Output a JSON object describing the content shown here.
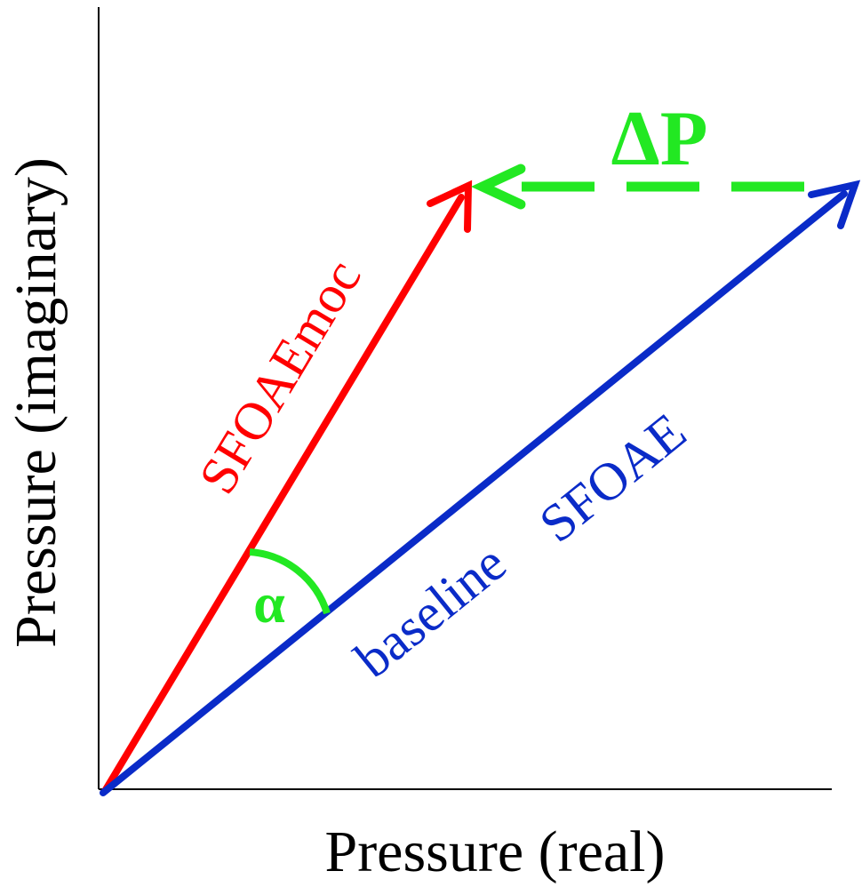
{
  "axes": {
    "x_label": "Pressure (real)",
    "y_label": "Pressure (imaginary)"
  },
  "vectors": {
    "moc": {
      "label": "SFOAEmoc",
      "color": "#ff0000"
    },
    "baseline": {
      "label_part1": "baseline",
      "label_part2": "SFOAE",
      "color": "#0a2bc8"
    }
  },
  "difference": {
    "label": "ΔP",
    "color": "#22e822"
  },
  "angle": {
    "label": "α",
    "color": "#22e822"
  },
  "colors": {
    "axis": "#000000"
  }
}
